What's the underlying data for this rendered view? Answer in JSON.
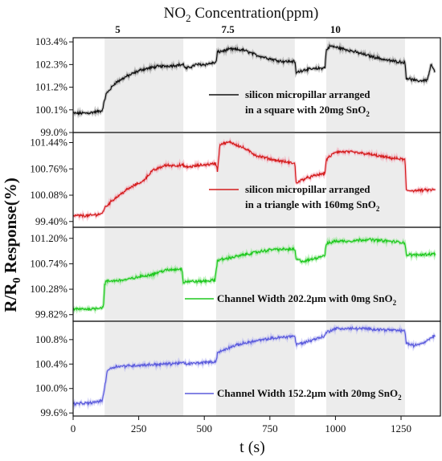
{
  "chart_data": {
    "type": "line",
    "top_title": {
      "main": "NO",
      "sub": "2",
      "rest": " Concentration(ppm)"
    },
    "concentration_labels": [
      {
        "label": "5",
        "t": 170
      },
      {
        "label": "7.5",
        "t": 590
      },
      {
        "label": "10",
        "t": 1000
      }
    ],
    "shaded_intervals": [
      [
        120,
        420
      ],
      [
        545,
        845
      ],
      [
        965,
        1265
      ]
    ],
    "xlabel": "t (s)",
    "ylabel": "R/R₀ Response(%)",
    "ylabel_parts": {
      "a": "R/R",
      "sub": "0",
      "b": " Response(%)"
    },
    "xlim": [
      0,
      1400
    ],
    "xticks": [
      0,
      250,
      500,
      750,
      1000,
      1250
    ],
    "panels": [
      {
        "color": "#111111",
        "glow": "#9a9a9a",
        "ylim": [
          99.0,
          103.6
        ],
        "yticks": [
          "99.0%",
          "100.1%",
          "101.2%",
          "102.3%",
          "103.4%"
        ],
        "ytick_values": [
          99.0,
          100.1,
          101.2,
          102.3,
          103.4
        ],
        "legend": [
          "silicon micropillar arranged",
          "in a square with 20mg SnO₂"
        ],
        "legend_parts": [
          {
            "text": "silicon micropillar arranged"
          },
          {
            "text": "in a square with 20mg SnO",
            "sub": "2"
          }
        ],
        "legend_pos": "right-lower",
        "series": {
          "t": [
            0,
            60,
            110,
            120,
            125,
            160,
            200,
            260,
            320,
            380,
            420,
            430,
            470,
            500,
            545,
            550,
            600,
            650,
            700,
            760,
            800,
            845,
            850,
            880,
            930,
            960,
            965,
            980,
            1050,
            1120,
            1200,
            1265,
            1270,
            1310,
            1350,
            1365,
            1380
          ],
          "y": [
            99.93,
            99.95,
            100.05,
            100.55,
            100.85,
            101.4,
            101.7,
            102.05,
            102.2,
            102.25,
            102.3,
            102.1,
            102.3,
            102.3,
            102.4,
            102.9,
            103.05,
            103.0,
            102.75,
            102.55,
            102.45,
            102.45,
            101.9,
            102.05,
            102.1,
            102.15,
            103.0,
            103.2,
            103.0,
            102.75,
            102.5,
            102.4,
            101.65,
            101.5,
            101.55,
            102.3,
            101.9
          ]
        }
      },
      {
        "color": "#d41c1c",
        "glow": "#f4a8b8",
        "ylim": [
          99.25,
          101.7
        ],
        "yticks": [
          "99.40%",
          "100.08%",
          "100.76%",
          "101.44%"
        ],
        "ytick_values": [
          99.4,
          100.08,
          100.76,
          101.44
        ],
        "legend": [
          "silicon micropillar arranged",
          "in a triangle with 160mg SnO₂"
        ],
        "legend_parts": [
          {
            "text": "silicon micropillar arranged"
          },
          {
            "text": "in a triangle with 160mg SnO",
            "sub": "2"
          }
        ],
        "legend_pos": "right-lower",
        "series": {
          "t": [
            0,
            60,
            110,
            120,
            150,
            200,
            250,
            260,
            300,
            350,
            420,
            430,
            480,
            545,
            550,
            560,
            600,
            650,
            700,
            760,
            800,
            845,
            850,
            880,
            930,
            960,
            965,
            1000,
            1050,
            1120,
            1200,
            1265,
            1270,
            1310,
            1380
          ],
          "y": [
            99.55,
            99.55,
            99.6,
            99.75,
            99.95,
            100.2,
            100.4,
            100.4,
            100.7,
            100.85,
            100.85,
            100.8,
            100.85,
            100.9,
            100.7,
            101.4,
            101.45,
            101.3,
            101.1,
            101.0,
            100.95,
            100.9,
            100.4,
            100.5,
            100.6,
            100.65,
            101.0,
            101.2,
            101.2,
            101.15,
            101.05,
            101.0,
            100.2,
            100.2,
            100.22
          ]
        }
      },
      {
        "color": "#1ec81e",
        "glow": "#8fe88f",
        "ylim": [
          99.7,
          101.4
        ],
        "yticks": [
          "99.82%",
          "100.28%",
          "100.74%",
          "101.20%"
        ],
        "ytick_values": [
          99.82,
          100.28,
          100.74,
          101.2
        ],
        "legend": [
          "Channel Width 202.2μm with 0mg SnO₂"
        ],
        "legend_parts": [
          {
            "text": "Channel Width 202.2μm with 0mg SnO",
            "sub": "2"
          }
        ],
        "legend_pos": "right-lower",
        "series": {
          "t": [
            0,
            60,
            115,
            120,
            125,
            200,
            250,
            300,
            350,
            415,
            420,
            430,
            480,
            540,
            545,
            550,
            600,
            650,
            700,
            760,
            800,
            845,
            850,
            880,
            930,
            960,
            965,
            1000,
            1050,
            1120,
            1200,
            1265,
            1270,
            1310,
            1380
          ],
          "y": [
            99.92,
            99.92,
            99.95,
            100.35,
            100.42,
            100.45,
            100.5,
            100.55,
            100.62,
            100.65,
            100.4,
            100.42,
            100.42,
            100.44,
            100.6,
            100.8,
            100.85,
            100.9,
            100.95,
            101.0,
            101.0,
            101.0,
            100.82,
            100.78,
            100.85,
            100.9,
            101.1,
            101.15,
            101.15,
            101.18,
            101.15,
            101.12,
            100.9,
            100.9,
            100.92
          ]
        }
      },
      {
        "color": "#5b5bdc",
        "glow": "#b8b8f2",
        "ylim": [
          99.55,
          101.1
        ],
        "yticks": [
          "99.6%",
          "100.0%",
          "100.4%",
          "100.8%"
        ],
        "ytick_values": [
          99.6,
          100.0,
          100.4,
          100.8
        ],
        "legend": [
          "Channel Width 152.2μm with 20mg SnO₂"
        ],
        "legend_parts": [
          {
            "text": "Channel Width 152.2μm with 20mg SnO",
            "sub": "2"
          }
        ],
        "legend_pos": "right-lower",
        "series": {
          "t": [
            0,
            60,
            110,
            120,
            130,
            160,
            250,
            350,
            420,
            430,
            480,
            545,
            550,
            600,
            650,
            700,
            760,
            800,
            845,
            850,
            880,
            930,
            960,
            965,
            1000,
            1100,
            1200,
            1265,
            1270,
            1300,
            1340,
            1380
          ],
          "y": [
            99.75,
            99.76,
            99.8,
            100.0,
            100.3,
            100.36,
            100.38,
            100.4,
            100.42,
            100.4,
            100.42,
            100.44,
            100.58,
            100.68,
            100.74,
            100.78,
            100.82,
            100.84,
            100.86,
            100.72,
            100.75,
            100.82,
            100.86,
            100.92,
            100.98,
            100.98,
            100.96,
            100.94,
            100.74,
            100.7,
            100.76,
            100.88
          ]
        }
      }
    ]
  }
}
